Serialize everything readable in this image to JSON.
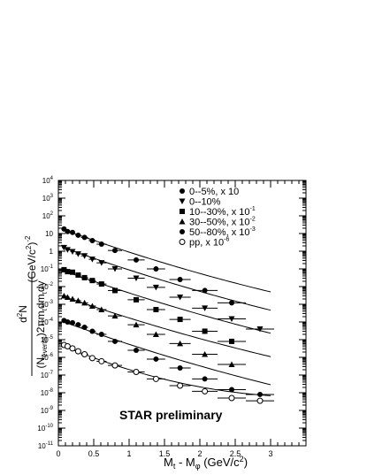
{
  "chart_data": {
    "type": "scatter",
    "title": "",
    "xlabel_main": "M",
    "xlabel_sub1": "t",
    "xlabel_mid": " - M",
    "xlabel_sub2": "φ",
    "xlabel_unit": " (GeV/c",
    "xlabel_unit_sup": "2",
    "xlabel_close": ")",
    "ylabel_num": "N",
    "ylabel_num_sup": "2",
    "ylabel_num_pre": "d",
    "ylabel_den": "(N",
    "ylabel_den_sub": "events",
    "ylabel_den_rest": ")2πm",
    "ylabel_den_sub2": "t",
    "ylabel_den_end": "dm",
    "ylabel_den_sub3": "t",
    "ylabel_den_dy": "dy",
    "ylabel_units": "(GeV/c",
    "ylabel_units_sup": "2",
    "ylabel_units_close": ")",
    "ylabel_units_exp": "-2",
    "annotation": "STAR  preliminary",
    "xlim": [
      0,
      3.5
    ],
    "ylog_exponent_range": [
      -11,
      4
    ],
    "x_ticks": [
      "0",
      "0.5",
      "1",
      "1.5",
      "2",
      "2.5",
      "3"
    ],
    "y_ticks": [
      {
        "base": "10",
        "exp": "4"
      },
      {
        "base": "10",
        "exp": "3"
      },
      {
        "base": "10",
        "exp": "2"
      },
      {
        "base": "10",
        "exp": ""
      },
      {
        "base": "1",
        "exp": ""
      },
      {
        "base": "10",
        "exp": "-1"
      },
      {
        "base": "10",
        "exp": "-2"
      },
      {
        "base": "10",
        "exp": "-3"
      },
      {
        "base": "10",
        "exp": "-4"
      },
      {
        "base": "10",
        "exp": "-5"
      },
      {
        "base": "10",
        "exp": "-6"
      },
      {
        "base": "10",
        "exp": "-7"
      },
      {
        "base": "10",
        "exp": "-8"
      },
      {
        "base": "10",
        "exp": "-9"
      },
      {
        "base": "10",
        "exp": "-10"
      },
      {
        "base": "10",
        "exp": "-11"
      }
    ],
    "legend_position": "top-right",
    "series": [
      {
        "name": "0--5%, x 10",
        "legend_main": "0--5%, x 10",
        "legend_sup": "",
        "marker": "circle",
        "x": [
          0.08,
          0.13,
          0.2,
          0.28,
          0.37,
          0.48,
          0.61,
          0.8,
          1.1,
          1.38,
          1.72,
          2.07,
          2.45
        ],
        "y": [
          18,
          13,
          11.5,
          8,
          6,
          4,
          2.5,
          1.1,
          0.32,
          0.1,
          0.025,
          0.006,
          0.0012
        ],
        "xerr": [
          0.03,
          0.03,
          0.03,
          0.04,
          0.05,
          0.05,
          0.07,
          0.1,
          0.12,
          0.13,
          0.15,
          0.18,
          0.2
        ],
        "fit": {
          "a": 21,
          "b": -3.35,
          "c": 0.19,
          "x0": 0.05,
          "x1": 3.0
        }
      },
      {
        "name": "0--10%",
        "legend_main": "0--10%",
        "legend_sup": "",
        "marker": "triangle-down",
        "x": [
          0.08,
          0.13,
          0.2,
          0.28,
          0.37,
          0.48,
          0.61,
          0.8,
          1.1,
          1.38,
          1.72,
          2.07,
          2.45,
          2.85
        ],
        "y": [
          1.6,
          1.2,
          0.95,
          0.7,
          0.55,
          0.35,
          0.22,
          0.1,
          0.03,
          0.009,
          0.0025,
          0.0006,
          0.00015,
          4e-05
        ],
        "xerr": [
          0.03,
          0.03,
          0.03,
          0.04,
          0.05,
          0.05,
          0.07,
          0.1,
          0.12,
          0.13,
          0.15,
          0.18,
          0.2,
          0.2
        ],
        "fit": {
          "a": 2.0,
          "b": -3.3,
          "c": 0.17,
          "x0": 0.05,
          "x1": 3.0
        }
      },
      {
        "name": "10--30%, x 10-1",
        "legend_main": "10--30%, x 10",
        "legend_sup": "-1",
        "marker": "square",
        "x": [
          0.08,
          0.13,
          0.2,
          0.28,
          0.37,
          0.48,
          0.61,
          0.8,
          1.1,
          1.38,
          1.72,
          2.07,
          2.45
        ],
        "y": [
          0.09,
          0.07,
          0.065,
          0.045,
          0.032,
          0.022,
          0.014,
          0.006,
          0.0018,
          0.0005,
          0.00014,
          3e-05,
          8e-06
        ],
        "xerr": [
          0.03,
          0.03,
          0.03,
          0.04,
          0.05,
          0.05,
          0.07,
          0.1,
          0.12,
          0.13,
          0.15,
          0.18,
          0.2
        ],
        "fit": {
          "a": 0.1,
          "b": -3.3,
          "c": 0.17,
          "x0": 0.05,
          "x1": 3.0
        }
      },
      {
        "name": "30--50%, x 10-2",
        "legend_main": "30--50%, x 10",
        "legend_sup": "-2",
        "marker": "triangle-up",
        "x": [
          0.08,
          0.13,
          0.2,
          0.28,
          0.37,
          0.48,
          0.61,
          0.8,
          1.1,
          1.38,
          1.72,
          2.07,
          2.45
        ],
        "y": [
          0.003,
          0.0025,
          0.002,
          0.0016,
          0.0012,
          0.0008,
          0.0005,
          0.00022,
          7e-05,
          2e-05,
          6e-06,
          1.5e-06,
          4e-07
        ],
        "xerr": [
          0.03,
          0.03,
          0.03,
          0.04,
          0.05,
          0.05,
          0.07,
          0.1,
          0.12,
          0.13,
          0.15,
          0.18,
          0.2
        ],
        "fit": {
          "a": 0.0035,
          "b": -3.2,
          "c": 0.17,
          "x0": 0.05,
          "x1": 3.0
        }
      },
      {
        "name": "50--80%, x 10-3",
        "legend_main": "50--80%, x 10",
        "legend_sup": "-3",
        "marker": "circle",
        "x": [
          0.08,
          0.13,
          0.2,
          0.28,
          0.37,
          0.48,
          0.61,
          0.8,
          1.1,
          1.38,
          1.72,
          2.07,
          2.45,
          2.85
        ],
        "y": [
          0.00012,
          0.0001,
          9e-05,
          7e-05,
          5e-05,
          3e-05,
          2e-05,
          8e-06,
          2.5e-06,
          8e-07,
          2.5e-07,
          6e-08,
          1.5e-08,
          8e-09
        ],
        "xerr": [
          0.03,
          0.03,
          0.03,
          0.04,
          0.05,
          0.05,
          0.07,
          0.1,
          0.12,
          0.13,
          0.15,
          0.18,
          0.2,
          0.2
        ],
        "fit": {
          "a": 0.00013,
          "b": -3.35,
          "c": 0.18,
          "x0": 0.05,
          "x1": 3.0
        }
      },
      {
        "name": "pp, x 10-6",
        "legend_main": "pp, x 10",
        "legend_sup": "-6",
        "marker": "open-circle",
        "x": [
          0.08,
          0.13,
          0.2,
          0.28,
          0.37,
          0.48,
          0.61,
          0.8,
          1.1,
          1.38,
          1.72,
          2.07,
          2.45,
          2.85
        ],
        "y": [
          5e-06,
          4.2e-06,
          3.2e-06,
          2.2e-06,
          1.5e-06,
          9e-07,
          6e-07,
          3.5e-07,
          1.5e-07,
          6e-08,
          2.5e-08,
          1.2e-08,
          5e-09,
          3.5e-09
        ],
        "xerr": [
          0.03,
          0.03,
          0.03,
          0.04,
          0.05,
          0.05,
          0.07,
          0.1,
          0.12,
          0.13,
          0.15,
          0.18,
          0.2,
          0.2
        ],
        "fit": {
          "a": 5.8e-06,
          "b": -3.9,
          "c": 0.55,
          "x0": 0.05,
          "x1": 3.0
        }
      }
    ]
  }
}
